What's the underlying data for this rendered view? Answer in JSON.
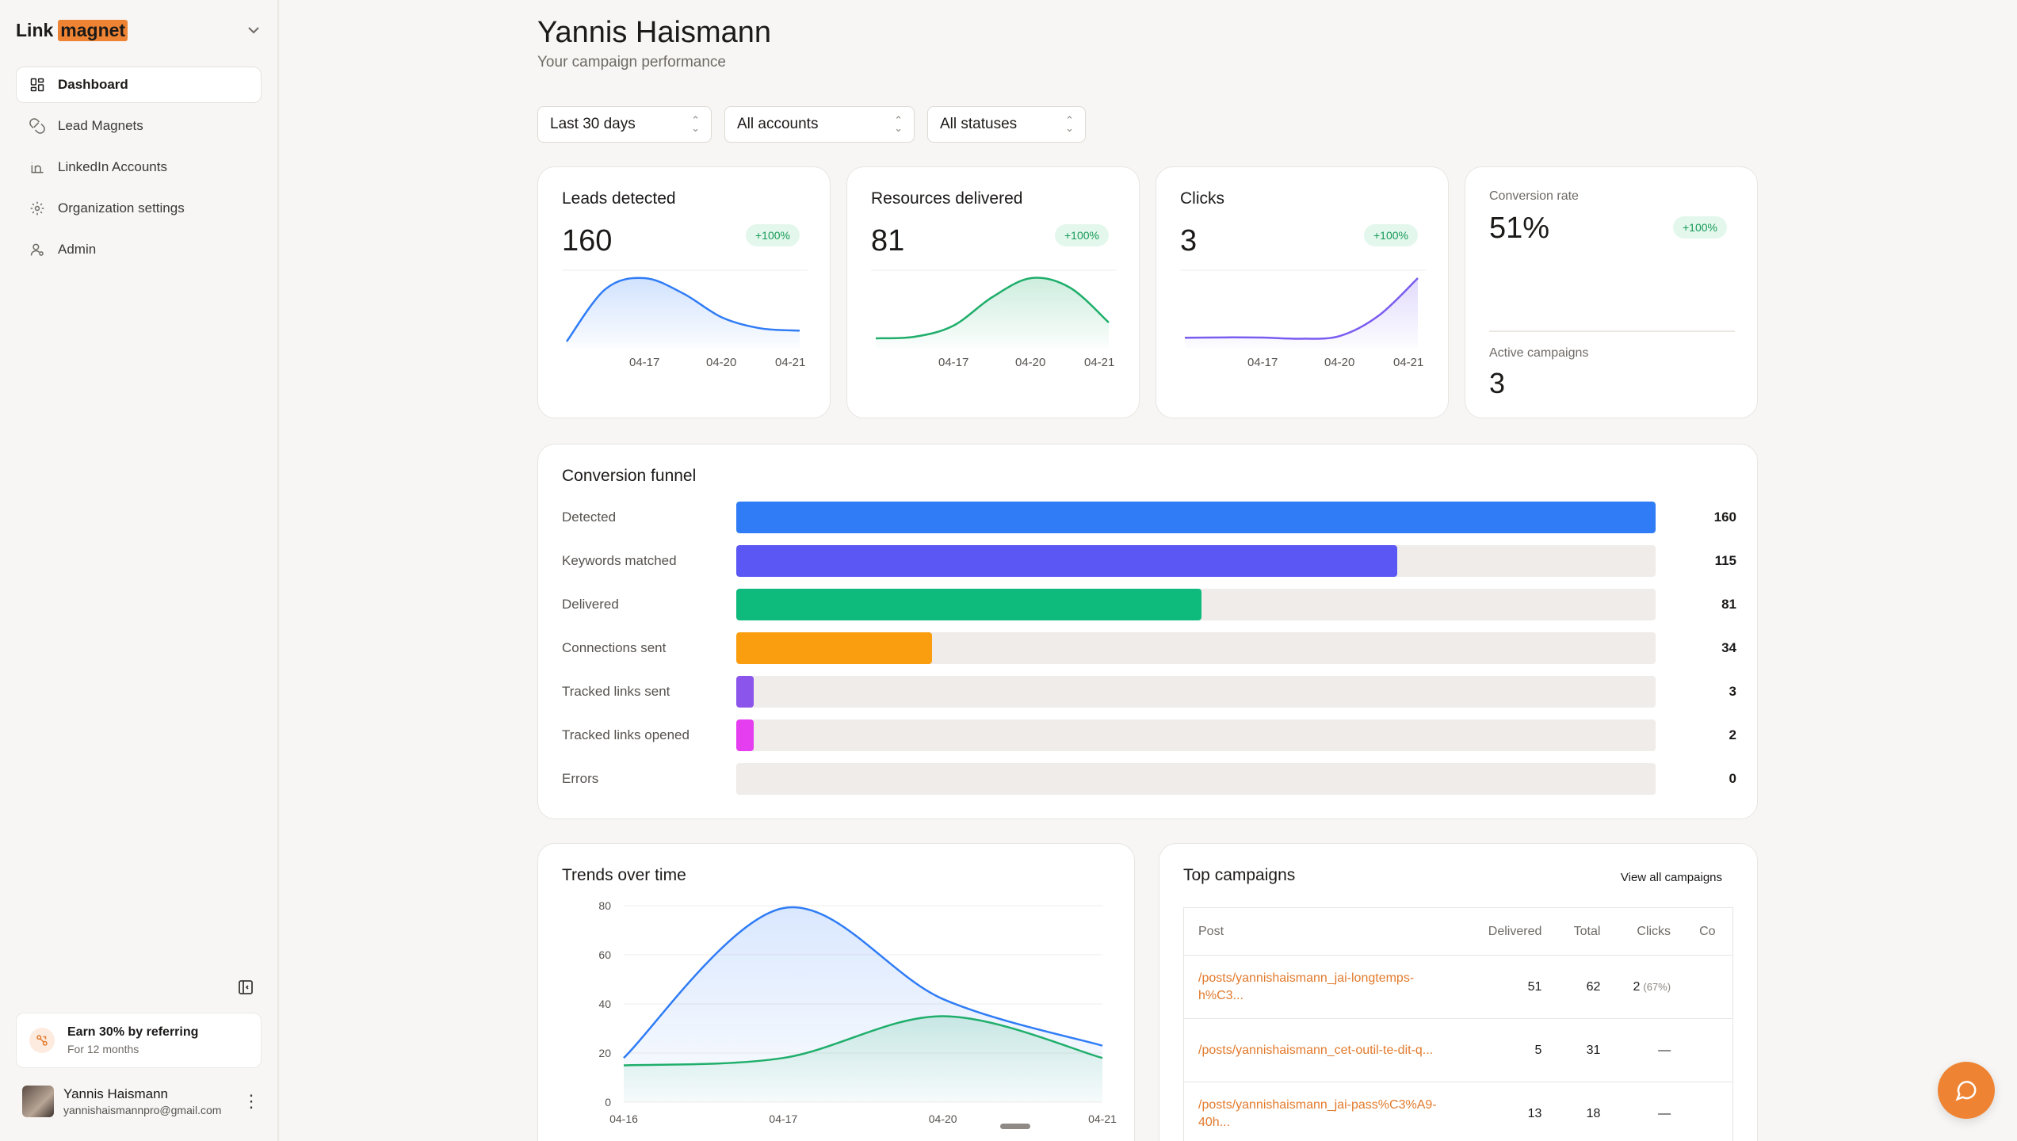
{
  "app": {
    "logo_part1": "Link",
    "logo_part2": "magnet"
  },
  "sidebar": {
    "items": [
      {
        "label": "Dashboard",
        "icon": "grid-icon"
      },
      {
        "label": "Lead Magnets",
        "icon": "magnet-icon"
      },
      {
        "label": "LinkedIn Accounts",
        "icon": "linkedin-icon"
      },
      {
        "label": "Organization settings",
        "icon": "gear-icon"
      },
      {
        "label": "Admin",
        "icon": "user-admin-icon"
      }
    ],
    "referral_title": "Earn 30% by referring",
    "referral_sub": "For 12 months",
    "user_name": "Yannis Haismann",
    "user_email": "yannishaismannpro@gmail.com"
  },
  "header": {
    "title": "Yannis Haismann",
    "subtitle": "Your campaign performance"
  },
  "filters": {
    "period": "Last 30 days",
    "accounts": "All accounts",
    "statuses": "All statuses"
  },
  "stats": {
    "leads": {
      "title": "Leads detected",
      "value": "160",
      "delta": "+100%",
      "color": "#2f7cf6",
      "series": [
        0,
        48,
        58,
        44,
        22,
        12,
        10
      ],
      "ticks": [
        "04-17",
        "04-20",
        "04-21"
      ]
    },
    "resources": {
      "title": "Resources delivered",
      "value": "81",
      "delta": "+100%",
      "color": "#1fae6b",
      "series": [
        2,
        3,
        10,
        28,
        40,
        34,
        12
      ],
      "ticks": [
        "04-17",
        "04-20",
        "04-21"
      ]
    },
    "clicks": {
      "title": "Clicks",
      "value": "3",
      "delta": "+100%",
      "color": "#7a5cf0",
      "series": [
        2,
        2.2,
        2.1,
        1.5,
        3,
        14,
        34
      ],
      "ticks": [
        "04-17",
        "04-20",
        "04-21"
      ]
    },
    "conversion": {
      "title": "Conversion rate",
      "value": "51%",
      "delta": "+100%",
      "active_title": "Active campaigns",
      "active_value": "3"
    }
  },
  "funnel": {
    "title": "Conversion funnel",
    "max": 160,
    "rows": [
      {
        "label": "Detected",
        "value": 160,
        "color": "#2f7cf6"
      },
      {
        "label": "Keywords matched",
        "value": 115,
        "color": "#5b57f5"
      },
      {
        "label": "Delivered",
        "value": 81,
        "color": "#0fbb7c"
      },
      {
        "label": "Connections sent",
        "value": 34,
        "color": "#fa9d0e"
      },
      {
        "label": "Tracked links sent",
        "value": 3,
        "color": "#8b55ec"
      },
      {
        "label": "Tracked links opened",
        "value": 2,
        "color": "#e53ef0"
      },
      {
        "label": "Errors",
        "value": 0,
        "color": "#ef4444"
      }
    ]
  },
  "chart_data": {
    "type": "area",
    "title": "Trends over time",
    "x": [
      "04-16",
      "04-17",
      "04-20",
      "04-21"
    ],
    "ylim": [
      0,
      80
    ],
    "yticks": [
      0,
      20,
      40,
      60,
      80
    ],
    "series": [
      {
        "values": [
          18,
          79,
          42,
          23
        ],
        "color": "#2f7cf6"
      },
      {
        "values": [
          15,
          18,
          35,
          18
        ],
        "color": "#1fae6b"
      }
    ]
  },
  "campaigns": {
    "title": "Top campaigns",
    "view_all": "View all campaigns",
    "columns": [
      "Post",
      "Delivered",
      "Total",
      "Clicks",
      "Co"
    ],
    "rows": [
      {
        "post": "/posts/yannishaismann_jai-longtemps-h%C3...",
        "delivered": "51",
        "total": "62",
        "clicks": "2",
        "clicks_pct": "(67%)"
      },
      {
        "post": "/posts/yannishaismann_cet-outil-te-dit-q...",
        "delivered": "5",
        "total": "31",
        "clicks": "—",
        "clicks_pct": ""
      },
      {
        "post": "/posts/yannishaismann_jai-pass%C3%A9-40h...",
        "delivered": "13",
        "total": "18",
        "clicks": "—",
        "clicks_pct": ""
      }
    ]
  }
}
